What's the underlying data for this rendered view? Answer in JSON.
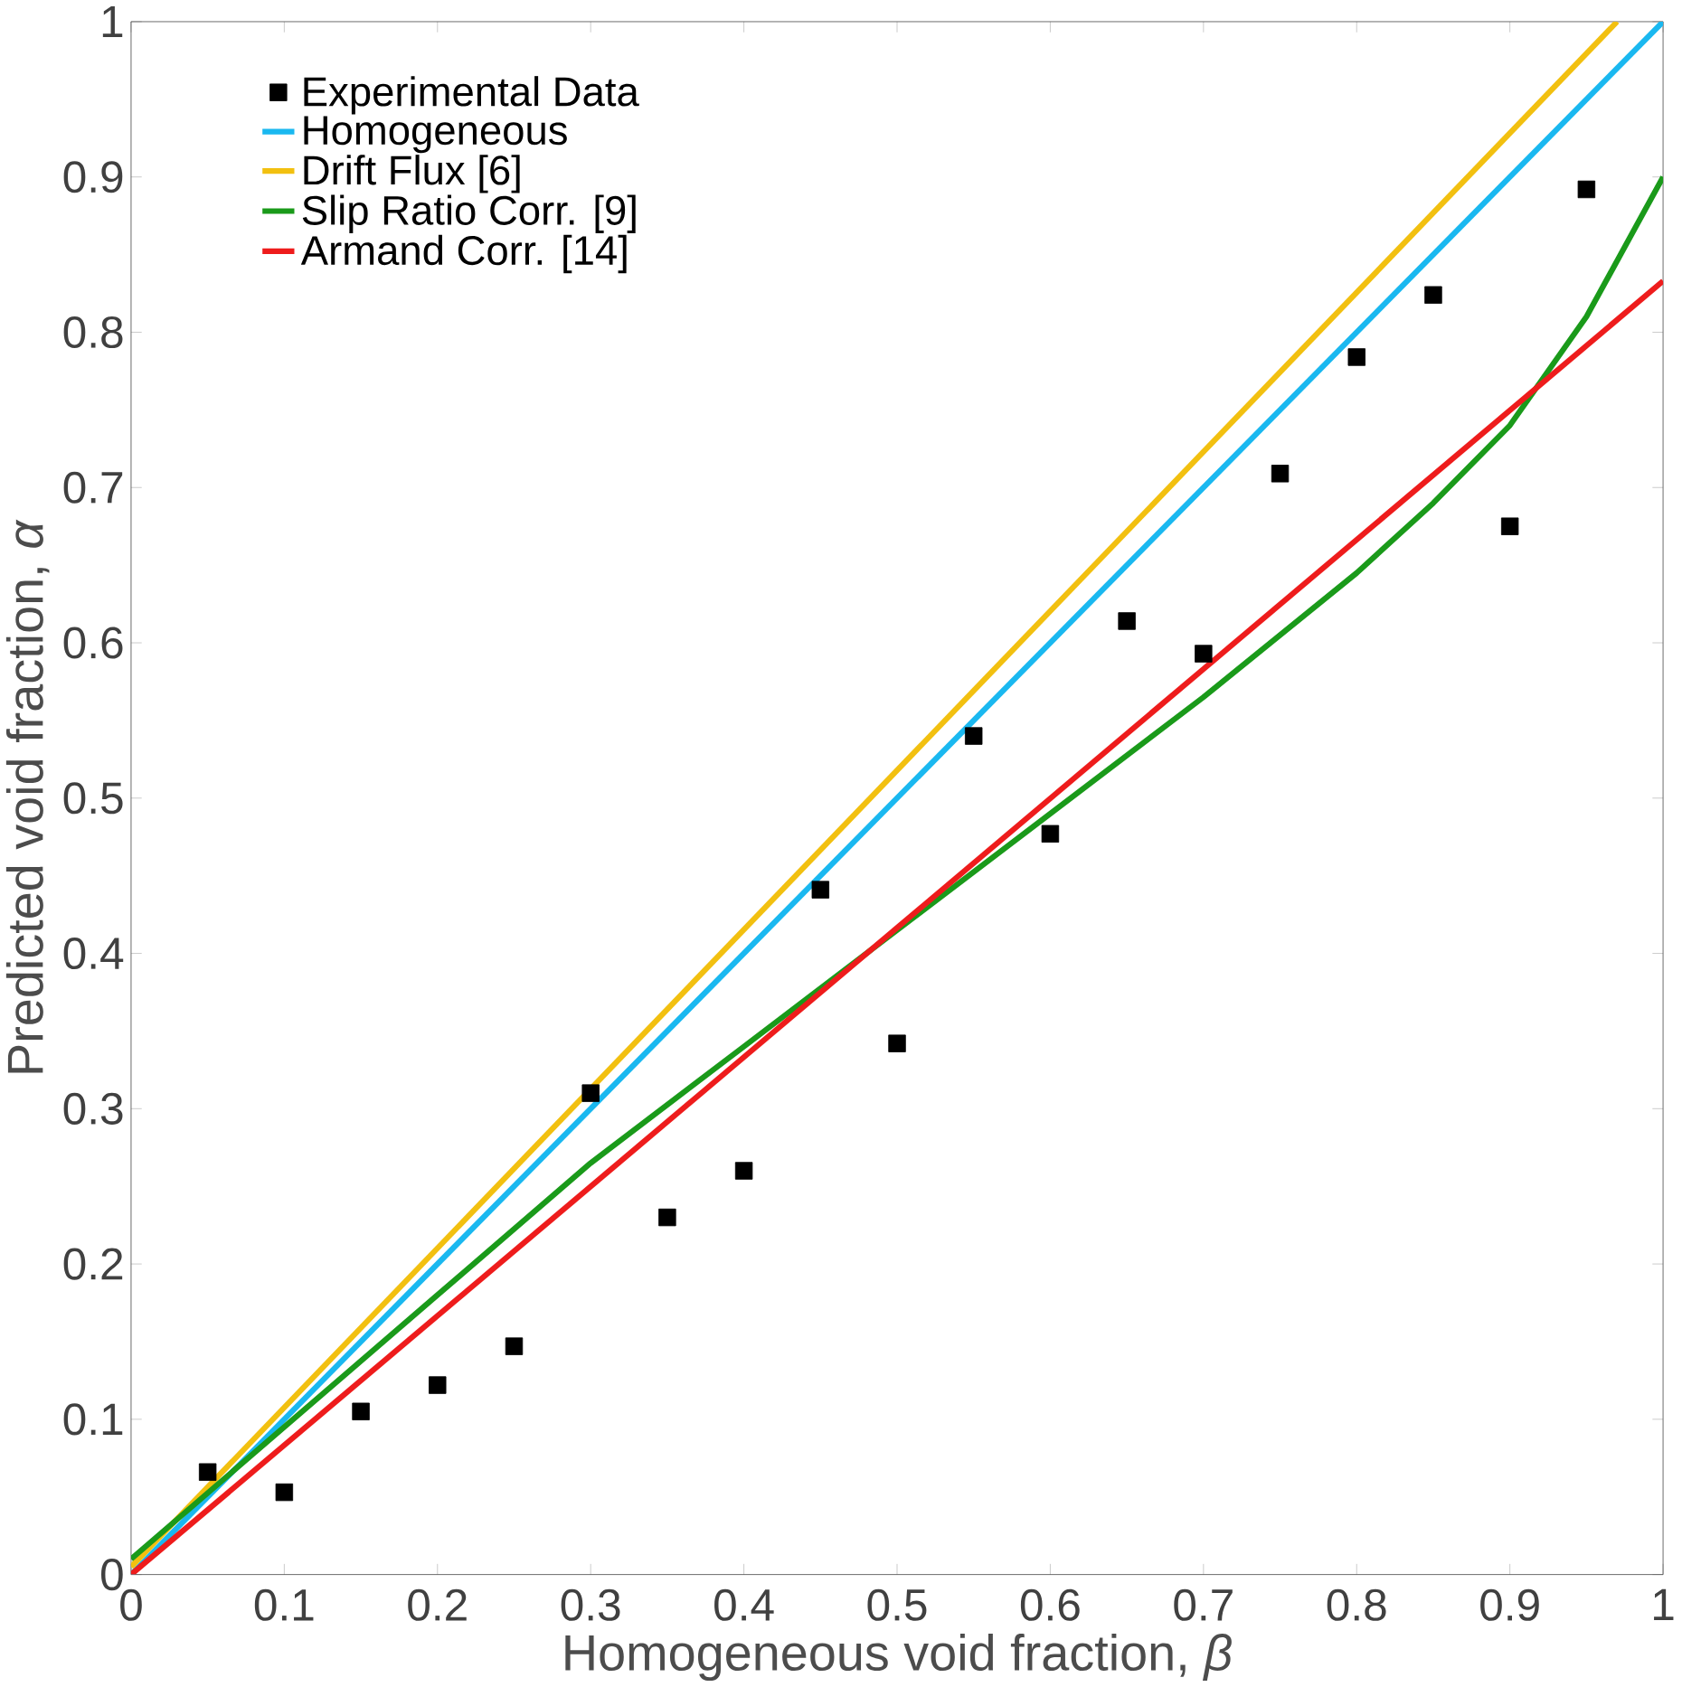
{
  "chart_data": {
    "type": "line",
    "xlabel": "Homogeneous void fraction, *β*",
    "ylabel": "Predicted void fraction, *α*",
    "xlim": [
      0,
      1
    ],
    "ylim": [
      0,
      1
    ],
    "xticks": [
      0,
      0.1,
      0.2,
      0.3,
      0.4,
      0.5,
      0.6,
      0.7,
      0.8,
      0.9,
      1
    ],
    "yticks": [
      0,
      0.1,
      0.2,
      0.3,
      0.4,
      0.5,
      0.6,
      0.7,
      0.8,
      0.9,
      1
    ],
    "legend": "top left",
    "series": [
      {
        "name": "Experimental Data",
        "type": "scatter",
        "marker": "square",
        "color": "#000000",
        "x": [
          0.05,
          0.1,
          0.15,
          0.2,
          0.25,
          0.3,
          0.35,
          0.4,
          0.45,
          0.5,
          0.55,
          0.6,
          0.65,
          0.7,
          0.75,
          0.8,
          0.85,
          0.9,
          0.95
        ],
        "values": [
          0.066,
          0.053,
          0.105,
          0.122,
          0.147,
          0.31,
          0.23,
          0.26,
          0.441,
          0.342,
          0.54,
          0.477,
          0.614,
          0.593,
          0.709,
          0.784,
          0.824,
          0.675,
          0.892
        ]
      },
      {
        "name": "Homogeneous",
        "color": "#1ab8f0",
        "x": [
          0,
          1
        ],
        "values": [
          0,
          1
        ]
      },
      {
        "name": "Drift Flux [6]",
        "color": "#f2c010",
        "x": [
          0,
          0.97
        ],
        "values": [
          0.005,
          1
        ]
      },
      {
        "name": "Slip Ratio Corr. [9]",
        "color": "#1a9a1a",
        "x": [
          0,
          0.1,
          0.2,
          0.3,
          0.4,
          0.5,
          0.6,
          0.7,
          0.8,
          0.85,
          0.9,
          0.95,
          1
        ],
        "values": [
          0.01,
          0.095,
          0.18,
          0.265,
          0.34,
          0.415,
          0.49,
          0.565,
          0.645,
          0.69,
          0.74,
          0.81,
          0.9
        ]
      },
      {
        "name": "Armand Corr. [14]",
        "color": "#ee1c1c",
        "x": [
          0,
          1
        ],
        "values": [
          0,
          0.833
        ]
      }
    ]
  }
}
